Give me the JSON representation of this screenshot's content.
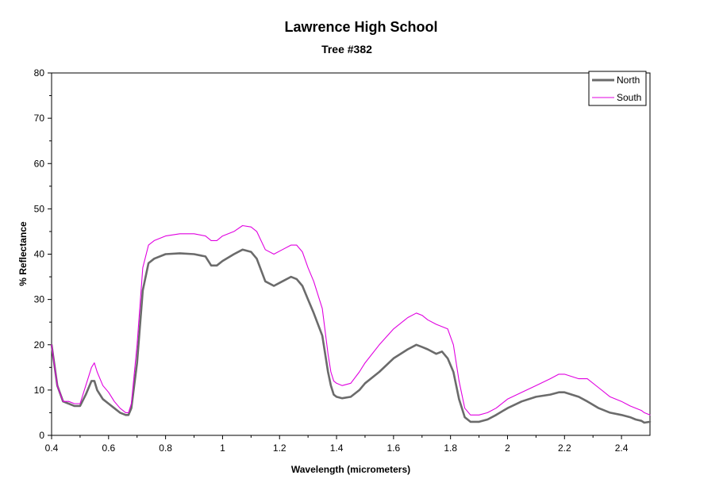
{
  "chart_data": {
    "type": "line",
    "title": "Lawrence High School",
    "subtitle": "Tree #382",
    "xlabel": "Wavelength (micrometers)",
    "ylabel": "% Reflectance",
    "xlim": [
      0.4,
      2.5
    ],
    "ylim": [
      0,
      80
    ],
    "xticks": [
      0.4,
      0.6,
      0.8,
      1,
      1.2,
      1.4,
      1.6,
      1.8,
      2,
      2.2,
      2.4
    ],
    "yticks": [
      0,
      10,
      20,
      30,
      40,
      50,
      60,
      70,
      80
    ],
    "grid": false,
    "legend_position": "top-right",
    "series": [
      {
        "name": "North",
        "color": "#6b6b6b",
        "x": [
          0.4,
          0.42,
          0.44,
          0.46,
          0.48,
          0.5,
          0.52,
          0.54,
          0.55,
          0.56,
          0.58,
          0.6,
          0.62,
          0.64,
          0.66,
          0.67,
          0.68,
          0.7,
          0.72,
          0.74,
          0.76,
          0.8,
          0.85,
          0.9,
          0.94,
          0.96,
          0.98,
          1.0,
          1.04,
          1.07,
          1.1,
          1.12,
          1.15,
          1.18,
          1.21,
          1.24,
          1.26,
          1.28,
          1.3,
          1.32,
          1.35,
          1.37,
          1.38,
          1.39,
          1.4,
          1.42,
          1.45,
          1.48,
          1.5,
          1.55,
          1.6,
          1.65,
          1.68,
          1.7,
          1.72,
          1.75,
          1.77,
          1.79,
          1.81,
          1.83,
          1.85,
          1.87,
          1.9,
          1.93,
          1.96,
          2.0,
          2.05,
          2.1,
          2.15,
          2.18,
          2.2,
          2.25,
          2.28,
          2.32,
          2.36,
          2.4,
          2.43,
          2.45,
          2.47,
          2.48,
          2.5
        ],
        "y": [
          20,
          11,
          7.5,
          7,
          6.5,
          6.5,
          9,
          12,
          12,
          10,
          8,
          7,
          6,
          5,
          4.5,
          4.5,
          6,
          16,
          32,
          38,
          39,
          40,
          40.2,
          40,
          39.5,
          37.5,
          37.5,
          38.5,
          40,
          41,
          40.5,
          39,
          34,
          33,
          34,
          35,
          34.5,
          33,
          30,
          27,
          22,
          14,
          11,
          9,
          8.5,
          8.2,
          8.5,
          10,
          11.5,
          14,
          17,
          19,
          20,
          19.5,
          19,
          18,
          18.5,
          17,
          14,
          8,
          4,
          3,
          3,
          3.5,
          4.5,
          6,
          7.5,
          8.5,
          9,
          9.5,
          9.5,
          8.5,
          7.5,
          6,
          5,
          4.5,
          4,
          3.5,
          3.2,
          2.8,
          3
        ]
      },
      {
        "name": "South",
        "color": "#e000e0",
        "x": [
          0.4,
          0.42,
          0.44,
          0.46,
          0.48,
          0.5,
          0.52,
          0.54,
          0.55,
          0.56,
          0.58,
          0.6,
          0.62,
          0.64,
          0.66,
          0.67,
          0.68,
          0.7,
          0.72,
          0.74,
          0.76,
          0.8,
          0.85,
          0.9,
          0.94,
          0.96,
          0.98,
          1.0,
          1.04,
          1.07,
          1.1,
          1.12,
          1.15,
          1.18,
          1.21,
          1.24,
          1.26,
          1.28,
          1.3,
          1.32,
          1.35,
          1.37,
          1.38,
          1.39,
          1.4,
          1.42,
          1.45,
          1.48,
          1.5,
          1.55,
          1.6,
          1.65,
          1.68,
          1.7,
          1.72,
          1.75,
          1.77,
          1.79,
          1.81,
          1.83,
          1.85,
          1.87,
          1.9,
          1.93,
          1.96,
          2.0,
          2.05,
          2.1,
          2.15,
          2.18,
          2.2,
          2.25,
          2.28,
          2.32,
          2.36,
          2.4,
          2.43,
          2.45,
          2.47,
          2.48,
          2.5
        ],
        "y": [
          20,
          11,
          7.5,
          7.5,
          7,
          7,
          11,
          15,
          16,
          14,
          11,
          9.5,
          7.5,
          6,
          5,
          5,
          7,
          20,
          37,
          42,
          43,
          44,
          44.5,
          44.5,
          44,
          43,
          43,
          44,
          45,
          46.3,
          46,
          45,
          41,
          40,
          41,
          42,
          42,
          40.5,
          37,
          34,
          28,
          18,
          14,
          12,
          11.5,
          11,
          11.5,
          14,
          16,
          20,
          23.5,
          26,
          27,
          26.5,
          25.5,
          24.5,
          24,
          23.5,
          20,
          12,
          6,
          4.5,
          4.5,
          5,
          6,
          8,
          9.5,
          11,
          12.5,
          13.5,
          13.5,
          12.5,
          12.5,
          10.5,
          8.5,
          7.5,
          6.5,
          6,
          5.5,
          5,
          4.5
        ]
      }
    ]
  }
}
